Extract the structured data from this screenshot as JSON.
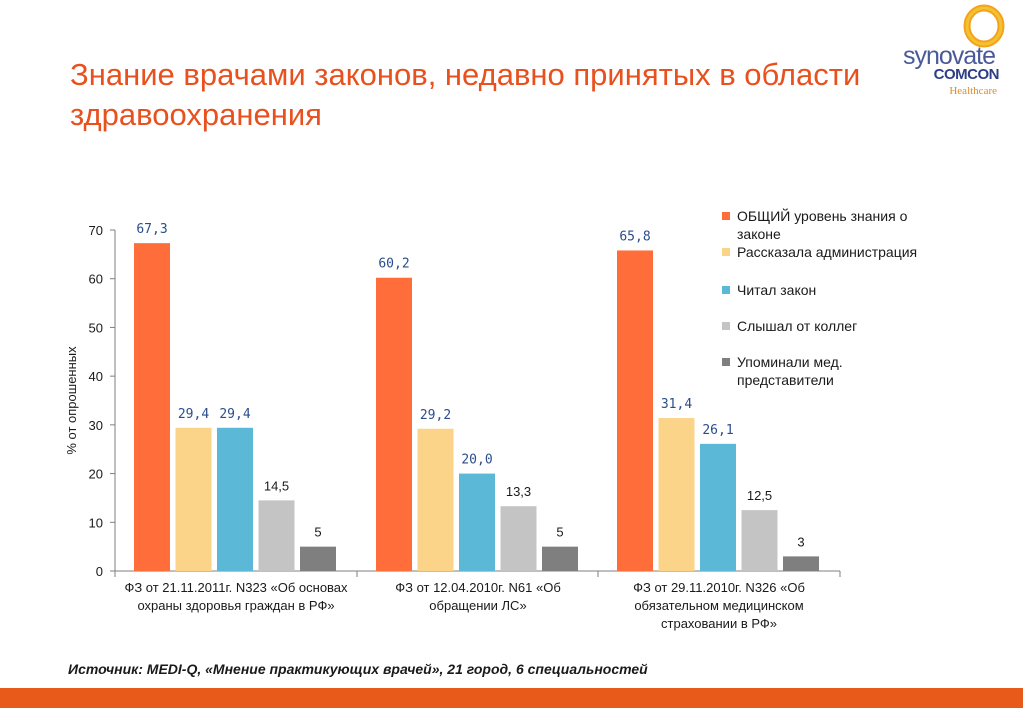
{
  "title": "Знание врачами законов, недавно принятых в области здравоохранения",
  "logo": {
    "line1": "synovate",
    "line2": "COMCON",
    "line3": "Healthcare"
  },
  "source": "Источник:  MEDI-Q, «Мнение практикующих врачей», 21 город, 6 специальностей",
  "chart_data": {
    "type": "bar",
    "ylabel": "% от опрошенных",
    "ylim": [
      0,
      70
    ],
    "yticks": [
      "0",
      "10",
      "20",
      "30",
      "40",
      "50",
      "60",
      "70"
    ],
    "grid": false,
    "legend_position": "right",
    "categories": [
      "ФЗ от 21.11.2011г. N323 «Об основах охраны здоровья граждан в РФ»",
      "ФЗ от 12.04.2010г. N61 «Об обращении ЛС»",
      "ФЗ от 29.11.2010г. N326 «Об обязательном медицинском страховании в РФ»"
    ],
    "series": [
      {
        "name": "ОБЩИЙ уровень знания о законе",
        "color": "#ff6e3a",
        "values": [
          67.3,
          60.2,
          65.8
        ],
        "labels": [
          "67,3",
          "60,2",
          "65,8"
        ]
      },
      {
        "name": "Рассказала администрация",
        "color": "#fbd48a",
        "values": [
          29.4,
          29.2,
          31.4
        ],
        "labels": [
          "29,4",
          "29,2",
          "31,4"
        ]
      },
      {
        "name": "Читал закон",
        "color": "#5bb8d6",
        "values": [
          29.4,
          20.0,
          26.1
        ],
        "labels": [
          "29,4",
          "20,0",
          "26,1"
        ]
      },
      {
        "name": "Слышал от коллег",
        "color": "#c4c4c4",
        "values": [
          14.5,
          13.3,
          12.5
        ],
        "labels": [
          "14,5",
          "13,3",
          "12,5"
        ]
      },
      {
        "name": "Упоминали мед. представители",
        "color": "#7f7f7f",
        "values": [
          5,
          5,
          3
        ],
        "labels": [
          "5",
          "5",
          "3"
        ]
      }
    ]
  }
}
